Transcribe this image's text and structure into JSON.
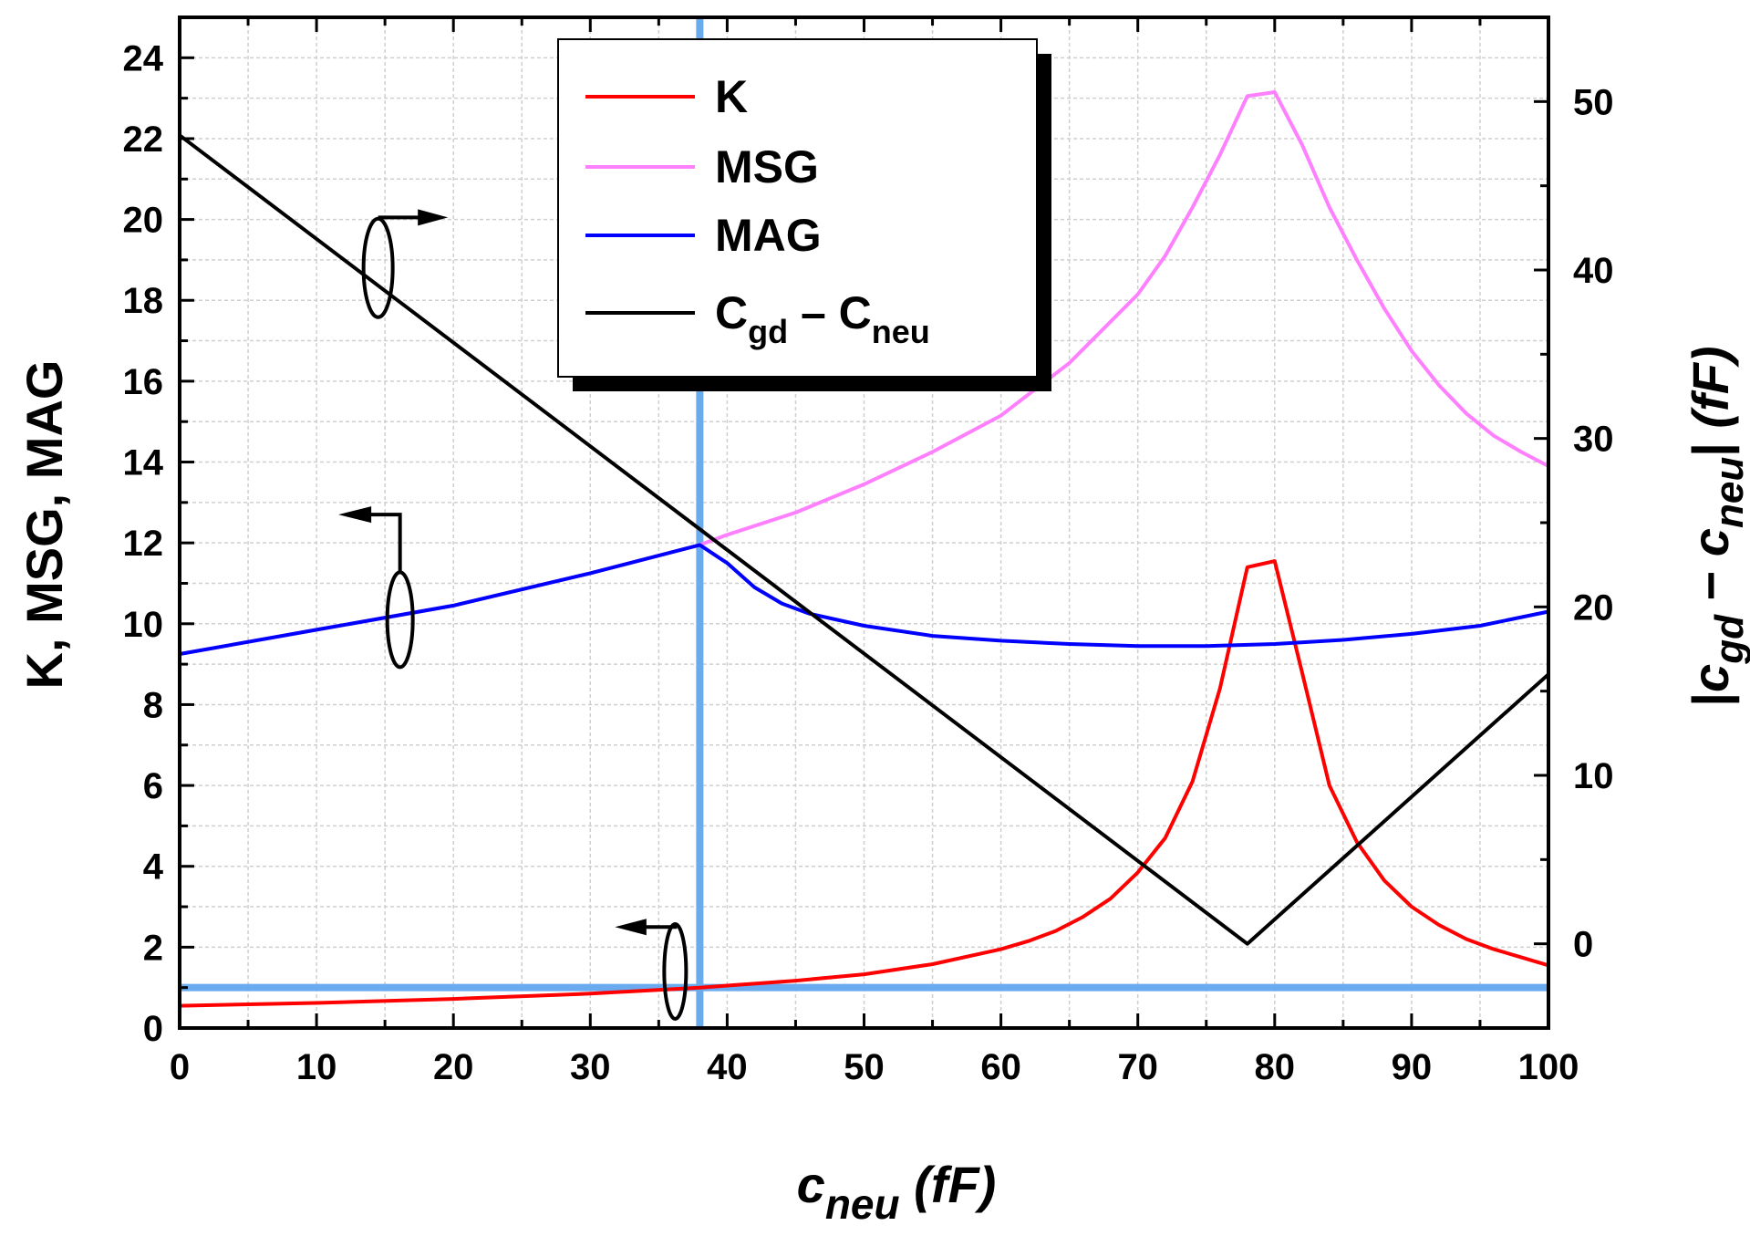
{
  "chart_data": {
    "type": "line",
    "title": "",
    "xlabel": {
      "main": "c",
      "sub": "neu",
      "unit": " (fF)"
    },
    "ylabel_left": "K, MSG, MAG",
    "ylabel_right": {
      "bar": "|",
      "c1": "c",
      "sub1": "gd",
      "minus": " − ",
      "c2": "c",
      "sub2": "neu",
      "bar2": "|",
      "unit": " (fF)"
    },
    "xlim": [
      0,
      100
    ],
    "ylim_left": [
      0,
      25
    ],
    "ylim_right": [
      -5,
      55
    ],
    "x_ticks": [
      "0",
      "10",
      "20",
      "30",
      "40",
      "50",
      "60",
      "70",
      "80",
      "90",
      "100"
    ],
    "y_left_ticks": [
      "0",
      "2",
      "4",
      "6",
      "8",
      "10",
      "12",
      "14",
      "16",
      "18",
      "20",
      "22",
      "24"
    ],
    "y_right_ticks": [
      "0",
      "10",
      "20",
      "30",
      "40",
      "50"
    ],
    "grid": true,
    "legend_placement": "top-center",
    "legend": [
      {
        "label": "K",
        "color": "#ff0000"
      },
      {
        "label": "MSG",
        "color": "#ff80ff"
      },
      {
        "label": "MAG",
        "color": "#0000ff"
      },
      {
        "label": "C",
        "sub": "gd",
        "label2": " – C",
        "sub2": "neu",
        "color": "#000000"
      }
    ],
    "reference_lines": [
      {
        "orientation": "vertical",
        "x": 38,
        "color": "#6aaaee"
      },
      {
        "orientation": "horizontal",
        "axis": "left",
        "y": 1,
        "color": "#6aaaee"
      }
    ],
    "series": [
      {
        "name": "K",
        "axis": "left",
        "color": "#ff0000",
        "x": [
          0,
          10,
          20,
          30,
          38,
          40,
          45,
          50,
          55,
          60,
          62,
          64,
          66,
          68,
          70,
          72,
          74,
          76,
          78,
          80,
          82,
          84,
          86,
          88,
          90,
          92,
          94,
          96,
          98,
          100
        ],
        "y": [
          0.55,
          0.62,
          0.72,
          0.85,
          1.0,
          1.05,
          1.17,
          1.33,
          1.58,
          1.95,
          2.15,
          2.4,
          2.75,
          3.2,
          3.85,
          4.7,
          6.1,
          8.4,
          11.4,
          11.55,
          8.8,
          6.0,
          4.6,
          3.65,
          3.0,
          2.55,
          2.2,
          1.95,
          1.75,
          1.55
        ]
      },
      {
        "name": "MSG",
        "axis": "left",
        "color": "#ff80ff",
        "x": [
          0,
          10,
          20,
          30,
          38,
          40,
          45,
          50,
          55,
          60,
          65,
          70,
          72,
          74,
          76,
          78,
          80,
          82,
          84,
          86,
          88,
          90,
          92,
          94,
          96,
          98,
          100
        ],
        "y": [
          9.25,
          9.85,
          10.45,
          11.25,
          11.95,
          12.2,
          12.75,
          13.45,
          14.25,
          15.15,
          16.45,
          18.15,
          19.1,
          20.3,
          21.6,
          23.05,
          23.15,
          21.85,
          20.3,
          19.0,
          17.8,
          16.75,
          15.9,
          15.2,
          14.65,
          14.25,
          13.9
        ]
      },
      {
        "name": "MAG",
        "axis": "left",
        "color": "#0000ff",
        "x": [
          0,
          10,
          20,
          30,
          38,
          40,
          42,
          44,
          46,
          50,
          55,
          60,
          65,
          70,
          75,
          80,
          85,
          90,
          95,
          100
        ],
        "y": [
          9.25,
          9.85,
          10.45,
          11.25,
          11.95,
          11.5,
          10.9,
          10.5,
          10.25,
          9.95,
          9.7,
          9.58,
          9.5,
          9.45,
          9.45,
          9.5,
          9.6,
          9.75,
          9.95,
          10.3
        ]
      },
      {
        "name": "Cgd - Cneu",
        "axis": "right",
        "color": "#000000",
        "x": [
          0,
          78,
          100
        ],
        "y": [
          48,
          0,
          16
        ]
      }
    ],
    "annotations": [
      "arrow-right near C_gd-C_neu curve",
      "arrow-left near MAG curve",
      "arrow-left near K curve"
    ]
  }
}
